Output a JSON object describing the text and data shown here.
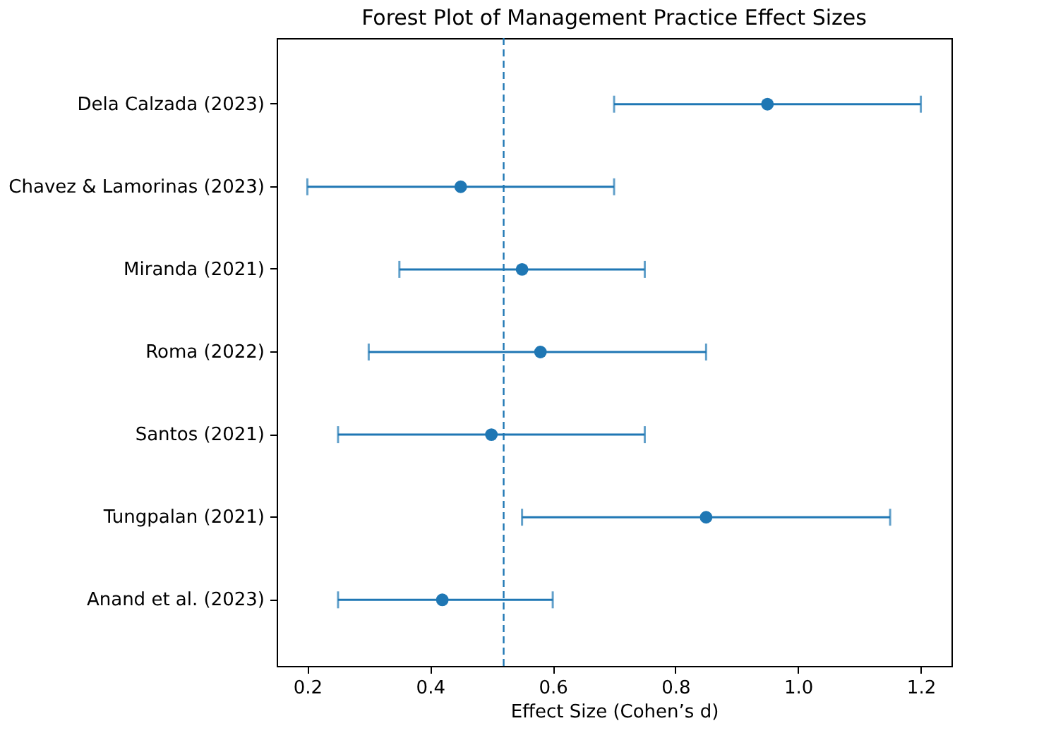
{
  "chart_data": {
    "type": "scatter",
    "orientation": "horizontal",
    "title": "Forest Plot of Management Practice Effect Sizes",
    "xlabel": "Effect Size (Cohen’s d)",
    "categories": [
      "Dela Calzada (2023)",
      "Chavez & Lamorinas (2023)",
      "Miranda (2021)",
      "Roma (2022)",
      "Santos (2021)",
      "Tungpalan (2021)",
      "Anand et al. (2023)"
    ],
    "series": [
      {
        "color": "#1f77b4",
        "values": [
          0.95,
          0.45,
          0.55,
          0.58,
          0.5,
          0.85,
          0.42
        ],
        "errors": [
          [
            0.7,
            1.2
          ],
          [
            0.2,
            0.7
          ],
          [
            0.35,
            0.75
          ],
          [
            0.3,
            0.85
          ],
          [
            0.25,
            0.75
          ],
          [
            0.55,
            1.15
          ],
          [
            0.25,
            0.6
          ]
        ]
      }
    ],
    "xlim": [
      0.15,
      1.25
    ],
    "xticks": [
      0.2,
      0.4,
      0.6,
      0.8,
      {
        "value": 1,
        "label": "1.0"
      },
      1.2
    ],
    "ref_lines": [
      {
        "axis": "x",
        "value": 0.52,
        "color": "#1f77b4",
        "line_style": "dashed"
      }
    ],
    "marker": "circle",
    "grid": false
  }
}
